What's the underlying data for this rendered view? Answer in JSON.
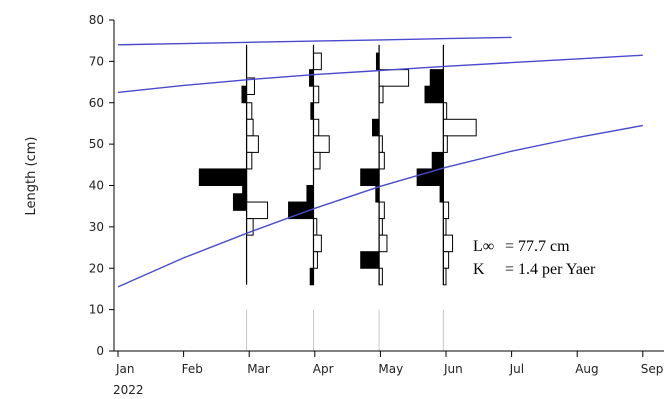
{
  "chart_data": {
    "type": "length-frequency",
    "ylabel": "Length (cm)",
    "ylim": [
      0,
      80
    ],
    "yticks": [
      "0",
      "10",
      "20",
      "30",
      "40",
      "50",
      "60",
      "70",
      "80"
    ],
    "xlim": [
      0,
      8
    ],
    "months": [
      "Jan",
      "Feb",
      "Mar",
      "Apr",
      "May",
      "Jun",
      "Jul",
      "Aug",
      "Sep"
    ],
    "year_label": "2022",
    "grid": false,
    "colors": {
      "curve": "#4a4acf",
      "axis": "#000000",
      "bar": "#000000",
      "sample_guide": "#c8c8c8"
    },
    "annotation": {
      "linf_label": "L∞",
      "linf_value": "= 77.7 cm",
      "k_label": "K",
      "k_value": "= 1.4 per Yaer"
    },
    "growth_curves": [
      {
        "x": [
          0,
          1,
          2,
          3,
          4,
          5,
          6
        ],
        "y": [
          74,
          74.3,
          74.6,
          74.9,
          75.2,
          75.5,
          75.8
        ]
      },
      {
        "x": [
          0,
          1,
          2,
          3,
          4,
          5,
          6,
          7,
          8
        ],
        "y": [
          62.5,
          64.2,
          65.6,
          66.8,
          67.8,
          68.8,
          69.7,
          70.6,
          71.5
        ]
      },
      {
        "x": [
          0,
          1,
          2,
          3,
          4,
          5,
          6,
          7,
          8
        ],
        "y": [
          15.5,
          22.5,
          28.7,
          34.5,
          39.8,
          44.4,
          48.3,
          51.6,
          54.5
        ]
      }
    ],
    "samples": [
      {
        "x": 1.96,
        "bins": [
          {
            "y": 62,
            "side": "left",
            "w": 0.07,
            "filled": true
          },
          {
            "y": 64,
            "side": "right",
            "w": 0.12,
            "filled": false
          },
          {
            "y": 58,
            "side": "right",
            "w": 0.08,
            "filled": false
          },
          {
            "y": 54,
            "side": "right",
            "w": 0.1,
            "filled": false
          },
          {
            "y": 50,
            "side": "right",
            "w": 0.18,
            "filled": false
          },
          {
            "y": 46,
            "side": "right",
            "w": 0.08,
            "filled": false
          },
          {
            "y": 42,
            "side": "left",
            "w": 0.72,
            "filled": true
          },
          {
            "y": 38,
            "side": "left",
            "w": 0.06,
            "filled": true
          },
          {
            "y": 36,
            "side": "left",
            "w": 0.2,
            "filled": true
          },
          {
            "y": 34,
            "side": "right",
            "w": 0.32,
            "filled": false
          },
          {
            "y": 30,
            "side": "right",
            "w": 0.1,
            "filled": false
          }
        ]
      },
      {
        "x": 2.98,
        "bins": [
          {
            "y": 70,
            "side": "right",
            "w": 0.12,
            "filled": false
          },
          {
            "y": 66,
            "side": "left",
            "w": 0.06,
            "filled": true
          },
          {
            "y": 62,
            "side": "right",
            "w": 0.08,
            "filled": false
          },
          {
            "y": 58,
            "side": "left",
            "w": 0.04,
            "filled": true
          },
          {
            "y": 54,
            "side": "right",
            "w": 0.08,
            "filled": false
          },
          {
            "y": 50,
            "side": "right",
            "w": 0.24,
            "filled": false
          },
          {
            "y": 46,
            "side": "right",
            "w": 0.1,
            "filled": false
          },
          {
            "y": 38,
            "side": "left",
            "w": 0.1,
            "filled": true
          },
          {
            "y": 34,
            "side": "left",
            "w": 0.38,
            "filled": true
          },
          {
            "y": 30,
            "side": "right",
            "w": 0.05,
            "filled": false
          },
          {
            "y": 26,
            "side": "right",
            "w": 0.12,
            "filled": false
          },
          {
            "y": 22,
            "side": "right",
            "w": 0.06,
            "filled": false
          },
          {
            "y": 18,
            "side": "left",
            "w": 0.05,
            "filled": true
          }
        ]
      },
      {
        "x": 3.98,
        "bins": [
          {
            "y": 70,
            "side": "left",
            "w": 0.04,
            "filled": true
          },
          {
            "y": 66,
            "side": "right",
            "w": 0.45,
            "filled": false
          },
          {
            "y": 62,
            "side": "right",
            "w": 0.06,
            "filled": false
          },
          {
            "y": 54,
            "side": "left",
            "w": 0.1,
            "filled": true
          },
          {
            "y": 50,
            "side": "right",
            "w": 0.05,
            "filled": false
          },
          {
            "y": 46,
            "side": "right",
            "w": 0.08,
            "filled": false
          },
          {
            "y": 42,
            "side": "left",
            "w": 0.28,
            "filled": true
          },
          {
            "y": 38,
            "side": "left",
            "w": 0.05,
            "filled": true
          },
          {
            "y": 34,
            "side": "right",
            "w": 0.08,
            "filled": false
          },
          {
            "y": 30,
            "side": "right",
            "w": 0.05,
            "filled": false
          },
          {
            "y": 26,
            "side": "right",
            "w": 0.12,
            "filled": false
          },
          {
            "y": 22,
            "side": "left",
            "w": 0.28,
            "filled": true
          },
          {
            "y": 18,
            "side": "right",
            "w": 0.05,
            "filled": false
          }
        ]
      },
      {
        "x": 4.96,
        "bins": [
          {
            "y": 66,
            "side": "left",
            "w": 0.2,
            "filled": true
          },
          {
            "y": 62,
            "side": "left",
            "w": 0.28,
            "filled": true
          },
          {
            "y": 58,
            "side": "right",
            "w": 0.05,
            "filled": false
          },
          {
            "y": 54,
            "side": "right",
            "w": 0.5,
            "filled": false
          },
          {
            "y": 50,
            "side": "right",
            "w": 0.06,
            "filled": false
          },
          {
            "y": 46,
            "side": "left",
            "w": 0.17,
            "filled": true
          },
          {
            "y": 42,
            "side": "left",
            "w": 0.4,
            "filled": true
          },
          {
            "y": 38,
            "side": "left",
            "w": 0.05,
            "filled": true
          },
          {
            "y": 34,
            "side": "right",
            "w": 0.08,
            "filled": false
          },
          {
            "y": 30,
            "side": "right",
            "w": 0.04,
            "filled": false
          },
          {
            "y": 26,
            "side": "right",
            "w": 0.14,
            "filled": false
          },
          {
            "y": 22,
            "side": "right",
            "w": 0.08,
            "filled": false
          },
          {
            "y": 18,
            "side": "right",
            "w": 0.04,
            "filled": false
          }
        ]
      }
    ]
  }
}
